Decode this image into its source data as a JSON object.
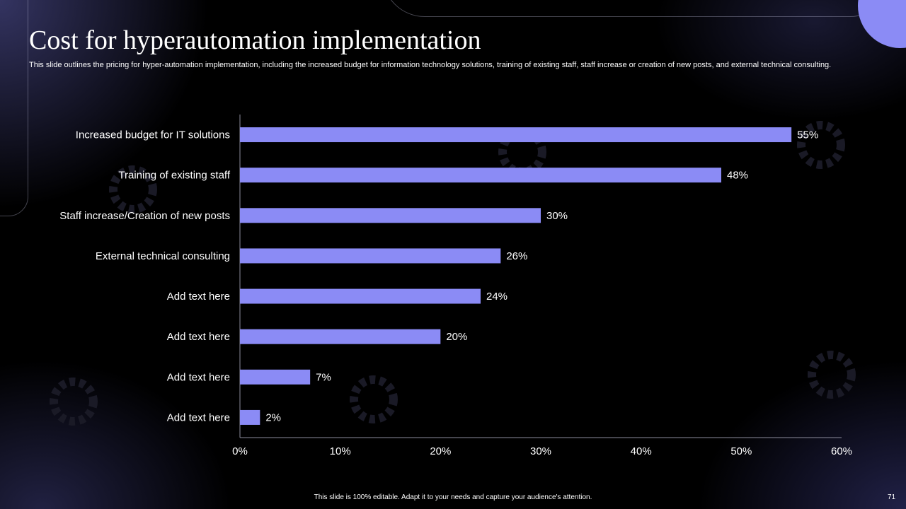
{
  "slide": {
    "title": "Cost for hyperautomation implementation",
    "subtitle": "This slide outlines the pricing for hyper-automation implementation, including the increased budget for information technology solutions, training of existing staff, staff increase or creation of new posts, and external technical consulting.",
    "footer": "This slide is 100% editable.  Adapt it to your needs and capture your audience's attention.",
    "page_number": "71"
  },
  "colors": {
    "bar": "#8b8bf5",
    "accent": "#8b8bf5",
    "text": "#ffffff",
    "axis": "#8c8c9c"
  },
  "chart_data": {
    "type": "bar",
    "orientation": "horizontal",
    "categories": [
      "Increased budget for IT solutions",
      "Training of existing staff",
      "Staff increase/Creation of new posts",
      "External technical consulting",
      "Add text here",
      "Add text here",
      "Add text here",
      "Add text here"
    ],
    "values": [
      55,
      48,
      30,
      26,
      24,
      20,
      7,
      2
    ],
    "data_labels": [
      "55%",
      "48%",
      "30%",
      "26%",
      "24%",
      "20%",
      "7%",
      "2%"
    ],
    "xlim": [
      0,
      60
    ],
    "x_ticks": [
      0,
      10,
      20,
      30,
      40,
      50,
      60
    ],
    "x_tick_labels": [
      "0%",
      "10%",
      "20%",
      "30%",
      "40%",
      "50%",
      "60%"
    ],
    "title": "",
    "xlabel": "",
    "ylabel": "",
    "grid": false,
    "legend": "none"
  }
}
